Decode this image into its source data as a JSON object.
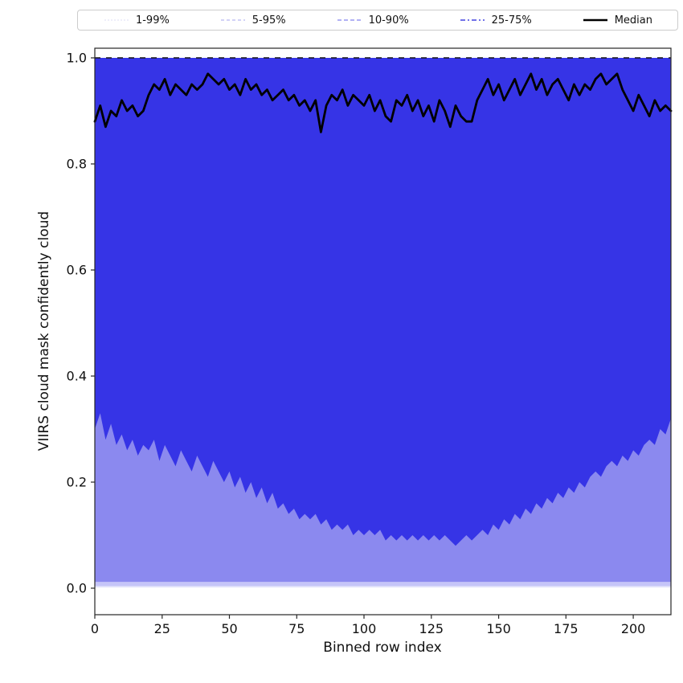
{
  "figure": {
    "background": "#ffffff"
  },
  "legend": {
    "items": [
      {
        "label": "1-99%",
        "color": "#dcdcf4",
        "dash": "2 2",
        "width": 1.0
      },
      {
        "label": "5-95%",
        "color": "#b6b6f0",
        "dash": "4 3",
        "width": 1.2
      },
      {
        "label": "10-90%",
        "color": "#8585ee",
        "dash": "5 3",
        "width": 1.3
      },
      {
        "label": "25-75%",
        "color": "#4343e0",
        "dash": "6 3 2 3",
        "width": 1.6
      },
      {
        "label": "Median",
        "color": "#000000",
        "dash": "",
        "width": 2.6
      }
    ]
  },
  "chart_data": {
    "type": "area",
    "subtype": "percentile-fan-chart",
    "title": "",
    "xlabel": "Binned row index",
    "ylabel": "VIIRS cloud mask confidently cloud",
    "xlim": [
      0,
      214
    ],
    "ylim": [
      -0.05,
      1.05
    ],
    "xticks": [
      0,
      25,
      50,
      75,
      100,
      125,
      150,
      175,
      200
    ],
    "yticks": [
      0.0,
      0.2,
      0.4,
      0.6,
      0.8,
      1.0
    ],
    "grid": false,
    "legend_position": "top",
    "x": [
      0,
      2,
      4,
      6,
      8,
      10,
      12,
      14,
      16,
      18,
      20,
      22,
      24,
      26,
      28,
      30,
      32,
      34,
      36,
      38,
      40,
      42,
      44,
      46,
      48,
      50,
      52,
      54,
      56,
      58,
      60,
      62,
      64,
      66,
      68,
      70,
      72,
      74,
      76,
      78,
      80,
      82,
      84,
      86,
      88,
      90,
      92,
      94,
      96,
      98,
      100,
      102,
      104,
      106,
      108,
      110,
      112,
      114,
      116,
      118,
      120,
      122,
      124,
      126,
      128,
      130,
      132,
      134,
      136,
      138,
      140,
      142,
      144,
      146,
      148,
      150,
      152,
      154,
      156,
      158,
      160,
      162,
      164,
      166,
      168,
      170,
      172,
      174,
      176,
      178,
      180,
      182,
      184,
      186,
      188,
      190,
      192,
      194,
      196,
      198,
      200,
      202,
      204,
      206,
      208,
      210,
      212,
      214
    ],
    "bands": [
      {
        "name": "1-99%",
        "lower_const": 0.001,
        "upper_const": 1.0,
        "color": "#e7e7fb"
      },
      {
        "name": "5-95%",
        "lower_const": 0.004,
        "upper_const": 1.0,
        "color": "#c6c5f8"
      },
      {
        "name": "10-90%",
        "lower_const": 0.012,
        "upper_const": 1.0,
        "color": "#8b89ef"
      },
      {
        "name": "25-75%",
        "upper_const": 1.0,
        "color": "#3634e6",
        "lower": [
          0.3,
          0.33,
          0.28,
          0.31,
          0.27,
          0.29,
          0.26,
          0.28,
          0.25,
          0.27,
          0.26,
          0.28,
          0.24,
          0.27,
          0.25,
          0.23,
          0.26,
          0.24,
          0.22,
          0.25,
          0.23,
          0.21,
          0.24,
          0.22,
          0.2,
          0.22,
          0.19,
          0.21,
          0.18,
          0.2,
          0.17,
          0.19,
          0.16,
          0.18,
          0.15,
          0.16,
          0.14,
          0.15,
          0.13,
          0.14,
          0.13,
          0.14,
          0.12,
          0.13,
          0.11,
          0.12,
          0.11,
          0.12,
          0.1,
          0.11,
          0.1,
          0.11,
          0.1,
          0.11,
          0.09,
          0.1,
          0.09,
          0.1,
          0.09,
          0.1,
          0.09,
          0.1,
          0.09,
          0.1,
          0.09,
          0.1,
          0.09,
          0.08,
          0.09,
          0.1,
          0.09,
          0.1,
          0.11,
          0.1,
          0.12,
          0.11,
          0.13,
          0.12,
          0.14,
          0.13,
          0.15,
          0.14,
          0.16,
          0.15,
          0.17,
          0.16,
          0.18,
          0.17,
          0.19,
          0.18,
          0.2,
          0.19,
          0.21,
          0.22,
          0.21,
          0.23,
          0.24,
          0.23,
          0.25,
          0.24,
          0.26,
          0.25,
          0.27,
          0.28,
          0.27,
          0.3,
          0.29,
          0.32
        ]
      }
    ],
    "median": {
      "name": "Median",
      "color": "#000000",
      "linewidth": 2.8,
      "values": [
        0.88,
        0.91,
        0.87,
        0.9,
        0.89,
        0.92,
        0.9,
        0.91,
        0.89,
        0.9,
        0.93,
        0.95,
        0.94,
        0.96,
        0.93,
        0.95,
        0.94,
        0.93,
        0.95,
        0.94,
        0.95,
        0.97,
        0.96,
        0.95,
        0.96,
        0.94,
        0.95,
        0.93,
        0.96,
        0.94,
        0.95,
        0.93,
        0.94,
        0.92,
        0.93,
        0.94,
        0.92,
        0.93,
        0.91,
        0.92,
        0.9,
        0.92,
        0.86,
        0.91,
        0.93,
        0.92,
        0.94,
        0.91,
        0.93,
        0.92,
        0.91,
        0.93,
        0.9,
        0.92,
        0.89,
        0.88,
        0.92,
        0.91,
        0.93,
        0.9,
        0.92,
        0.89,
        0.91,
        0.88,
        0.92,
        0.9,
        0.87,
        0.91,
        0.89,
        0.88,
        0.88,
        0.92,
        0.94,
        0.96,
        0.93,
        0.95,
        0.92,
        0.94,
        0.96,
        0.93,
        0.95,
        0.97,
        0.94,
        0.96,
        0.93,
        0.95,
        0.96,
        0.94,
        0.92,
        0.95,
        0.93,
        0.95,
        0.94,
        0.96,
        0.97,
        0.95,
        0.96,
        0.97,
        0.94,
        0.92,
        0.9,
        0.93,
        0.91,
        0.89,
        0.92,
        0.9,
        0.91,
        0.9
      ]
    },
    "top_edge_line": {
      "y": 1.0,
      "style": "dashed",
      "color": "#151515"
    }
  }
}
